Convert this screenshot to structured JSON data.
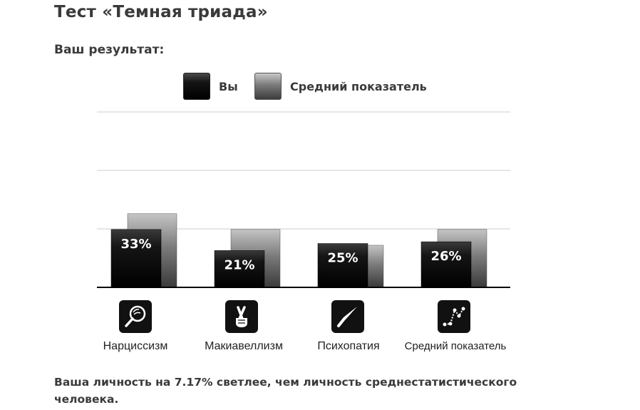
{
  "page": {
    "title": "Тест «Темная триада»",
    "subtitle": "Ваш результат:",
    "summary": "Ваша личность на 7.17% светлее, чем личность среднестатистического человека."
  },
  "legend": {
    "you": "Вы",
    "average": "Средний показатель"
  },
  "colors": {
    "you": "#111111",
    "average": "#6e6e6e",
    "grid": "#cccccc",
    "axis": "#000000"
  },
  "chart_data": {
    "type": "bar",
    "categories": [
      "Нарциссизм",
      "Макиавеллизм",
      "Психопатия",
      "Средний показатель"
    ],
    "icons": [
      "magnifier-icon",
      "crossed-fingers-icon",
      "knife-icon",
      "line-chart-icon"
    ],
    "series": [
      {
        "name": "Вы",
        "values": [
          33,
          21,
          25,
          26
        ],
        "labels": [
          "33%",
          "21%",
          "25%",
          "26%"
        ]
      },
      {
        "name": "Средний показатель",
        "values": [
          42,
          33,
          24,
          33
        ]
      }
    ],
    "ylim": [
      0,
      100
    ],
    "grid": true,
    "legend_position": "top"
  }
}
